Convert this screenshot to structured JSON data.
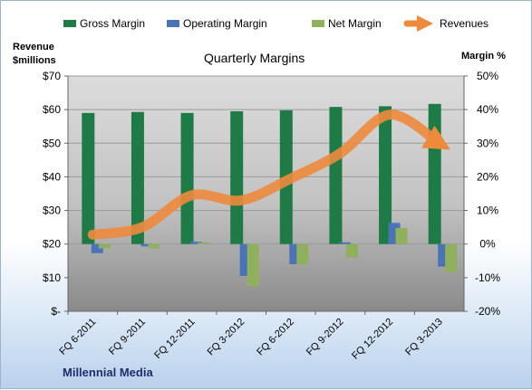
{
  "chart_data": {
    "type": "bar",
    "title": "Quarterly Margins",
    "company": "Millennial Media",
    "y_left_label": [
      "Revenue",
      "$millions"
    ],
    "y_right_label": "Margin %",
    "categories": [
      "FQ 6-2011",
      "FQ 9-2011",
      "FQ 12-2011",
      "FQ 3-2012",
      "FQ 6-2012",
      "FQ 9-2012",
      "FQ 12-2012",
      "FQ 3-2013"
    ],
    "y_left_ticks": [
      "$-",
      "$10",
      "$20",
      "$30",
      "$40",
      "$50",
      "$60",
      "$70"
    ],
    "y_left_range": [
      0,
      70
    ],
    "y_right_ticks": [
      "-20%",
      "-10%",
      "0%",
      "10%",
      "20%",
      "30%",
      "40%",
      "50%"
    ],
    "y_right_range": [
      -20,
      50
    ],
    "legend_position": "top",
    "series": [
      {
        "name": "Gross Margin",
        "kind": "bar",
        "axis": "right",
        "color": "#1e7b45",
        "values": [
          39,
          39.3,
          39,
          39.5,
          39.8,
          40.8,
          41,
          41.7
        ]
      },
      {
        "name": "Operating Margin",
        "kind": "bar",
        "axis": "right",
        "color": "#4a73b8",
        "values": [
          -2.7,
          -0.7,
          0.7,
          -9.5,
          -6,
          0.5,
          6.3,
          -6.7
        ]
      },
      {
        "name": "Net Margin",
        "kind": "bar",
        "axis": "right",
        "color": "#8fb15c",
        "values": [
          -1.3,
          -1.3,
          0.5,
          -12.5,
          -6,
          -4,
          4.8,
          -8.3
        ]
      },
      {
        "name": "Revenues",
        "kind": "line",
        "axis": "left",
        "color": "#ee8a3c",
        "values": [
          22.8,
          25,
          34.5,
          33,
          39.5,
          47,
          58.5,
          50
        ]
      }
    ]
  }
}
